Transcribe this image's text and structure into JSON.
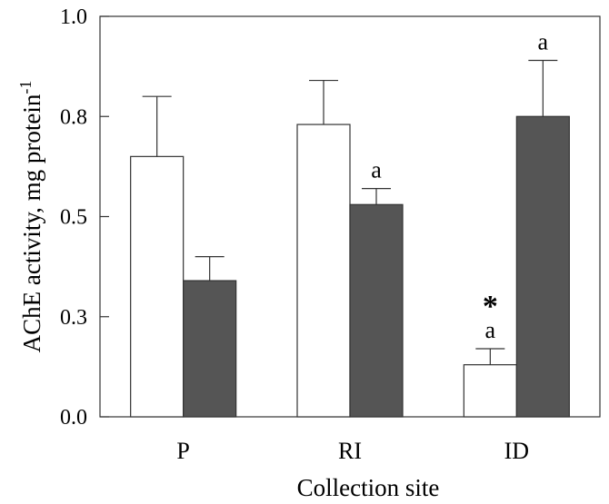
{
  "chart_data": {
    "type": "bar",
    "xlabel": "Collection site",
    "ylabel": "AChE activity, mg protein",
    "ylabel_superscript": "-1",
    "ylim": [
      0,
      1.0
    ],
    "yticks": [
      {
        "value": 0.0,
        "label": "0.0"
      },
      {
        "value": 0.25,
        "label": "0.3"
      },
      {
        "value": 0.5,
        "label": "0.5"
      },
      {
        "value": 0.75,
        "label": "0.8"
      },
      {
        "value": 1.0,
        "label": "1.0"
      }
    ],
    "grid": false,
    "legend": "none",
    "categories": [
      "P",
      "RI",
      "ID"
    ],
    "series": [
      {
        "fill": "#ffffff",
        "stroke": "#333333",
        "values": [
          0.65,
          0.73,
          0.13
        ],
        "errors": [
          0.15,
          0.11,
          0.04
        ],
        "annotations": [
          "",
          "",
          "a"
        ],
        "markers": [
          "",
          "",
          "*"
        ]
      },
      {
        "fill": "#555555",
        "stroke": "#333333",
        "values": [
          0.34,
          0.53,
          0.75
        ],
        "errors": [
          0.06,
          0.04,
          0.14
        ],
        "annotations": [
          "",
          "a",
          "a"
        ],
        "markers": [
          "",
          "",
          ""
        ]
      }
    ]
  }
}
